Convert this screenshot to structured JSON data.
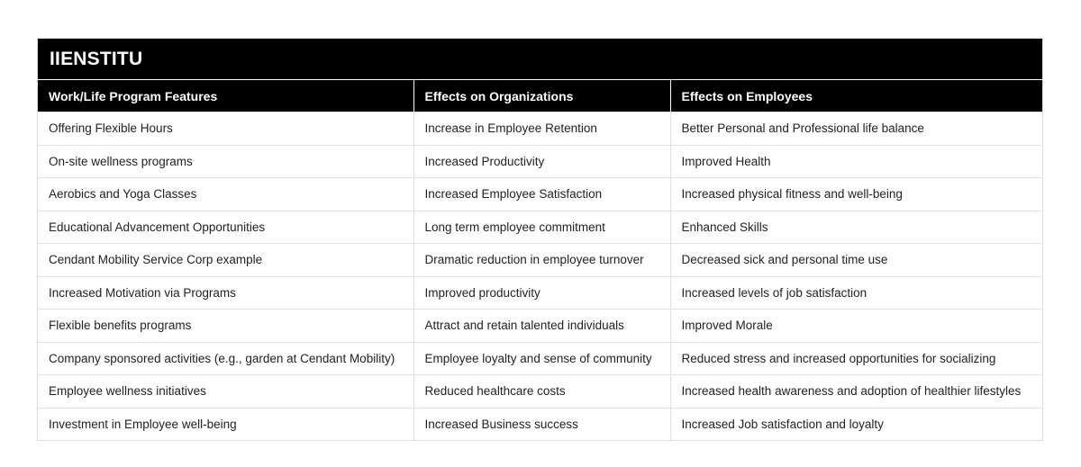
{
  "title": "IIENSTITU",
  "columns": [
    "Work/Life Program Features",
    "Effects on Organizations",
    "Effects on Employees"
  ],
  "rows": [
    [
      "Offering Flexible Hours",
      "Increase in Employee Retention",
      "Better Personal and Professional life balance"
    ],
    [
      "On-site wellness programs",
      "Increased Productivity",
      "Improved Health"
    ],
    [
      "Aerobics and Yoga Classes",
      "Increased Employee Satisfaction",
      "Increased physical fitness and well-being"
    ],
    [
      "Educational Advancement Opportunities",
      "Long term employee commitment",
      "Enhanced Skills"
    ],
    [
      "Cendant Mobility Service Corp example",
      "Dramatic reduction in employee turnover",
      "Decreased sick and personal time use"
    ],
    [
      "Increased Motivation via Programs",
      "Improved productivity",
      "Increased levels of job satisfaction"
    ],
    [
      "Flexible benefits programs",
      "Attract and retain talented individuals",
      "Improved Morale"
    ],
    [
      "Company sponsored activities (e.g., garden at Cendant Mobility)",
      "Employee loyalty and sense of community",
      "Reduced stress and increased opportunities for socializing"
    ],
    [
      "Employee wellness initiatives",
      "Reduced healthcare costs",
      "Increased health awareness and adoption of healthier lifestyles"
    ],
    [
      "Investment in Employee well-being",
      "Increased Business success",
      "Increased Job satisfaction and loyalty"
    ]
  ]
}
